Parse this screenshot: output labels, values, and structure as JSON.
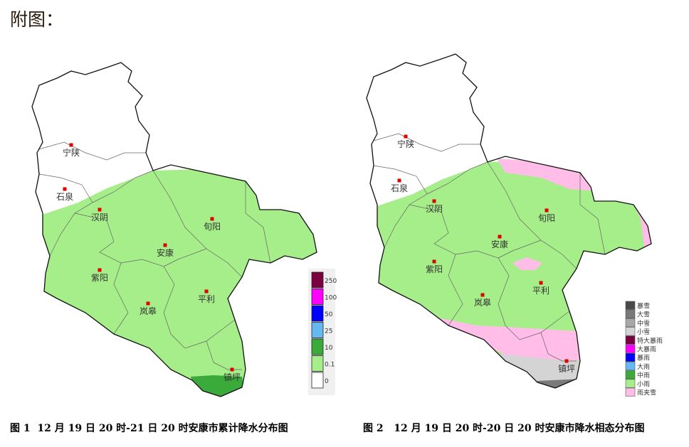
{
  "heading": "附图：",
  "figures": [
    {
      "caption": "图 1  12 月 19 日 20 时-21 日 20 时安康市累计降水分布图",
      "cities": [
        "宁陕",
        "石泉",
        "汉阴",
        "安康",
        "旬阳",
        "紫阳",
        "岚皋",
        "平利",
        "镇坪"
      ],
      "legend": [
        {
          "label": "250",
          "color": "#7a0040"
        },
        {
          "label": "100",
          "color": "#ff00ff"
        },
        {
          "label": "50",
          "color": "#0000ff"
        },
        {
          "label": "25",
          "color": "#66b8f0"
        },
        {
          "label": "10",
          "color": "#3aaa3a"
        },
        {
          "label": "0.1",
          "color": "#a6ee8a"
        },
        {
          "label": "0",
          "color": "#ffffff"
        }
      ]
    },
    {
      "caption": "图 2   12 月 19 日 20 时-20 日 20 时安康市降水相态分布图",
      "cities": [
        "宁陕",
        "石泉",
        "汉阴",
        "安康",
        "旬阳",
        "紫阳",
        "岚皋",
        "平利",
        "镇坪"
      ],
      "legend": [
        {
          "label": "暴雪",
          "color": "#4a4a4a"
        },
        {
          "label": "大雪",
          "color": "#7a7a7a"
        },
        {
          "label": "中雪",
          "color": "#a8a8a8"
        },
        {
          "label": "小雪",
          "color": "#d4d4d4"
        },
        {
          "label": "特大暴雨",
          "color": "#7a0040"
        },
        {
          "label": "大暴雨",
          "color": "#ff00ff"
        },
        {
          "label": "暴雨",
          "color": "#0000ff"
        },
        {
          "label": "大雨",
          "color": "#66b8f0"
        },
        {
          "label": "中雨",
          "color": "#3aaa3a"
        },
        {
          "label": "小雨",
          "color": "#a6ee8a"
        },
        {
          "label": "雨夹雪",
          "color": "#ffbde8"
        }
      ]
    }
  ]
}
